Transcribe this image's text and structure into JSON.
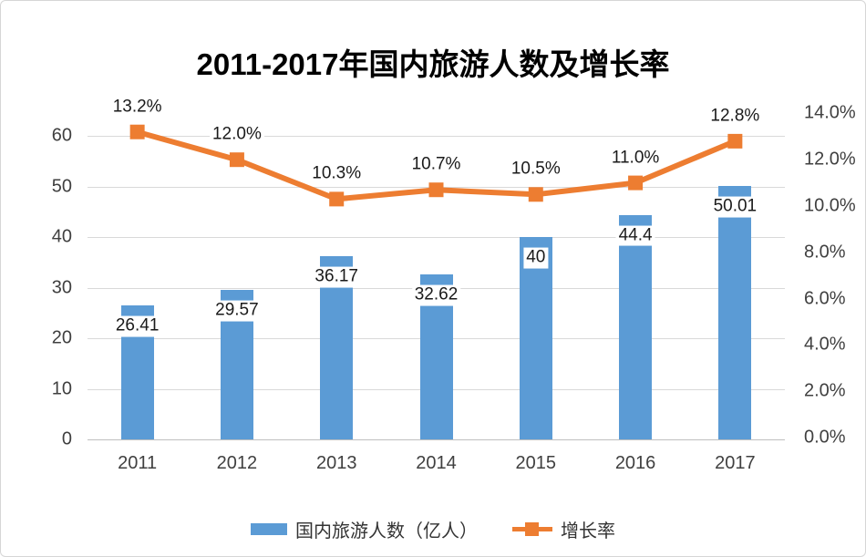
{
  "title": "2011-2017年国内旅游人数及增长率",
  "chart_data": {
    "type": "bar",
    "combo": "bar+line dual axis",
    "title": "2011-2017年国内旅游人数及增长率",
    "categories": [
      "2011",
      "2012",
      "2013",
      "2014",
      "2015",
      "2016",
      "2017"
    ],
    "series": [
      {
        "name": "国内旅游人数（亿人）",
        "type": "bar",
        "axis": "left",
        "color": "#5B9BD5",
        "values": [
          26.41,
          29.57,
          36.17,
          32.62,
          40,
          44.4,
          50.01
        ],
        "labels": [
          "26.41",
          "29.57",
          "36.17",
          "32.62",
          "40",
          "44.4",
          "50.01"
        ]
      },
      {
        "name": "增长率",
        "type": "line",
        "axis": "right",
        "color": "#ED7D31",
        "values": [
          13.2,
          12.0,
          10.3,
          10.7,
          10.5,
          11.0,
          12.8
        ],
        "labels": [
          "13.2%",
          "12.0%",
          "10.3%",
          "10.7%",
          "10.5%",
          "11.0%",
          "12.8%"
        ]
      }
    ],
    "left_axis": {
      "min": 0,
      "max": 60,
      "tick_values": [
        0,
        10,
        20,
        30,
        40,
        50,
        60
      ],
      "tick_labels": [
        "0",
        "10",
        "20",
        "30",
        "40",
        "50",
        "60"
      ]
    },
    "right_axis": {
      "min": 0,
      "max": 14,
      "tick_values": [
        0,
        2,
        4,
        6,
        8,
        10,
        12,
        14
      ],
      "tick_labels": [
        "0.0%",
        "2.0%",
        "4.0%",
        "6.0%",
        "8.0%",
        "10.0%",
        "12.0%",
        "14.0%"
      ]
    },
    "grid": true,
    "legend_position": "bottom"
  },
  "legend": {
    "items": [
      {
        "label": "国内旅游人数（亿人）",
        "color": "#5B9BD5",
        "marker": "bar"
      },
      {
        "label": "增长率",
        "color": "#ED7D31",
        "marker": "line-square"
      }
    ]
  },
  "colors": {
    "bar": "#5B9BD5",
    "line": "#ED7D31",
    "gridline": "#D9D9D9",
    "baseline": "#BFBFBF",
    "axis_text": "#404040",
    "label_text": "#1A1A1A"
  }
}
